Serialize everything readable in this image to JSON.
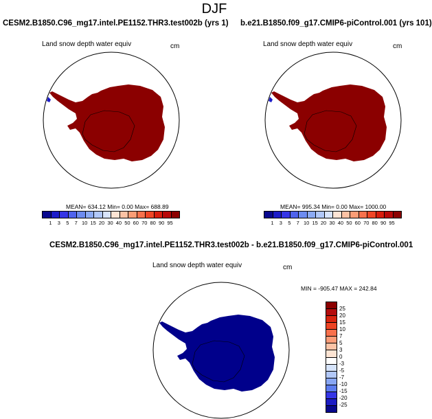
{
  "season": "DJF",
  "panels": [
    {
      "case": "CESM2.B1850.C96_mg17.intel.PE1152.THR3.test002b (yrs 1)",
      "variable": "Land snow depth water equiv",
      "units": "cm",
      "stats": "MEAN= 634.12  Min=   0.00  Max= 688.89",
      "fill_color": "#8b0000",
      "colorbar": {
        "labels": [
          "1",
          "3",
          "5",
          "7",
          "10",
          "15",
          "20",
          "30",
          "40",
          "50",
          "60",
          "70",
          "80",
          "90",
          "95"
        ],
        "colors": [
          "#08088e",
          "#1c1cc8",
          "#3535e6",
          "#4f63ec",
          "#6d8cf0",
          "#8cabf4",
          "#b1c8f8",
          "#d8e4fb",
          "#fde4d4",
          "#fcc2a4",
          "#fb9d76",
          "#f8714c",
          "#f04626",
          "#d81d0d",
          "#b80808",
          "#8b0000"
        ]
      }
    },
    {
      "case": "b.e21.B1850.f09_g17.CMIP6-piControl.001 (yrs 101)",
      "variable": "Land snow depth water equiv",
      "units": "cm",
      "stats": "MEAN= 995.34  Min=   0.00  Max= 1000.00",
      "fill_color": "#8b0000",
      "colorbar": {
        "labels": [
          "1",
          "3",
          "5",
          "7",
          "10",
          "15",
          "20",
          "30",
          "40",
          "50",
          "60",
          "70",
          "80",
          "90",
          "95"
        ],
        "colors": [
          "#08088e",
          "#1c1cc8",
          "#3535e6",
          "#4f63ec",
          "#6d8cf0",
          "#8cabf4",
          "#b1c8f8",
          "#d8e4fb",
          "#fde4d4",
          "#fcc2a4",
          "#fb9d76",
          "#f8714c",
          "#f04626",
          "#d81d0d",
          "#b80808",
          "#8b0000"
        ]
      }
    }
  ],
  "diff": {
    "case": "CESM2.B1850.C96_mg17.intel.PE1152.THR3.test002b - b.e21.B1850.f09_g17.CMIP6-piControl.001",
    "variable": "Land snow depth water equiv",
    "units": "cm",
    "stats": "MIN = -905.47 MAX = 242.84",
    "fill_color": "#00008b",
    "colorbar": {
      "labels": [
        "25",
        "20",
        "15",
        "10",
        "7",
        "5",
        "3",
        "0",
        "-3",
        "-5",
        "-7",
        "-10",
        "-15",
        "-20",
        "-25"
      ],
      "colors": [
        "#8b0000",
        "#b40c0c",
        "#d8240f",
        "#ee4424",
        "#f8704c",
        "#fb9c78",
        "#fcc3a6",
        "#fde4d3",
        "#ffffff",
        "#d6e4fb",
        "#b2c8f8",
        "#88a6f3",
        "#5c7cee",
        "#3535e6",
        "#1c1cc4",
        "#08088c"
      ]
    }
  }
}
